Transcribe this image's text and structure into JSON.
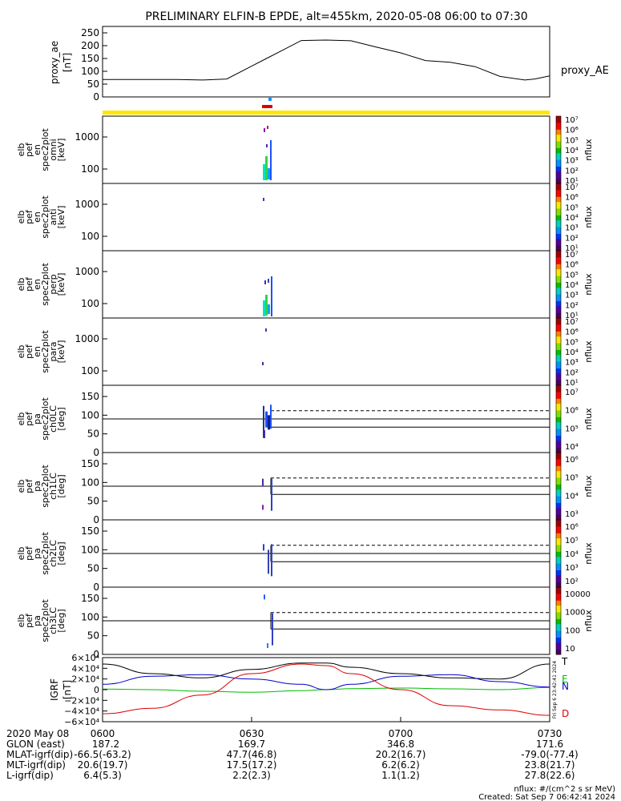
{
  "title": "PRELIMINARY ELFIN-B EPDE, alt=455km, 2020-05-08 06:00 to 07:30",
  "colors": {
    "state_bar": "#ffe600",
    "pass_marker": "#e00000",
    "pass_marker_top": "#1e90ff",
    "grf_total": "#000000",
    "grf_n": "#0000cc",
    "grf_e": "#00bb00",
    "grf_d": "#dd0000"
  },
  "panels": {
    "ae": {
      "ylabel": [
        "proxy_ae",
        "[nT]"
      ],
      "side_label": "proxy_AE",
      "ticks": [
        "0",
        "50",
        "100",
        "150",
        "200",
        "250"
      ]
    },
    "spec": [
      {
        "ylabel": [
          "elb",
          "pef",
          "en",
          "spec2plot",
          "omni",
          "[keV]"
        ],
        "ticks": [
          "100",
          "1000"
        ],
        "cb_ticks": [
          "10⁷",
          "10⁶",
          "10⁵",
          "10⁴",
          "10³",
          "10²",
          "10¹"
        ],
        "cb_label": "nflux"
      },
      {
        "ylabel": [
          "elb",
          "pef",
          "en",
          "spec2plot",
          "anti",
          "[keV]"
        ],
        "ticks": [
          "100",
          "1000"
        ],
        "cb_ticks": [
          "10⁷",
          "10⁶",
          "10⁵",
          "10⁴",
          "10³",
          "10²",
          "10¹"
        ],
        "cb_label": "nflux"
      },
      {
        "ylabel": [
          "elb",
          "pef",
          "en",
          "spec2plot",
          "perp",
          "[keV]"
        ],
        "ticks": [
          "100",
          "1000"
        ],
        "cb_ticks": [
          "10⁷",
          "10⁶",
          "10⁵",
          "10⁴",
          "10³",
          "10²",
          "10¹"
        ],
        "cb_label": "nflux"
      },
      {
        "ylabel": [
          "elb",
          "pef",
          "en",
          "spec2plot",
          "para",
          "[keV]"
        ],
        "ticks": [
          "100",
          "1000"
        ],
        "cb_ticks": [
          "10⁷",
          "10⁶",
          "10⁵",
          "10⁴",
          "10³",
          "10²",
          "10¹"
        ],
        "cb_label": "nflux"
      }
    ],
    "pa": [
      {
        "ylabel": [
          "elb",
          "pef",
          "pa",
          "spec2plot",
          "ch0LC",
          "[deg]"
        ],
        "ticks": [
          "0",
          "50",
          "100",
          "150"
        ],
        "cb_ticks": [
          "10⁷",
          "10⁶",
          "10⁵",
          "10⁴"
        ],
        "cb_label": "nflux"
      },
      {
        "ylabel": [
          "elb",
          "pef",
          "pa",
          "spec2plot",
          "ch1LC",
          "[deg]"
        ],
        "ticks": [
          "0",
          "50",
          "100",
          "150"
        ],
        "cb_ticks": [
          "10⁶",
          "10⁵",
          "10⁴",
          "10³"
        ],
        "cb_label": "nflux"
      },
      {
        "ylabel": [
          "elb",
          "pef",
          "pa",
          "spec2plot",
          "ch2LC",
          "[deg]"
        ],
        "ticks": [
          "0",
          "50",
          "100",
          "150"
        ],
        "cb_ticks": [
          "10⁶",
          "10⁵",
          "10⁴",
          "10³",
          "10²"
        ],
        "cb_label": "nflux"
      },
      {
        "ylabel": [
          "elb",
          "pef",
          "pa",
          "spec2plot",
          "ch3LC",
          "[deg]"
        ],
        "ticks": [
          "0",
          "50",
          "100",
          "150"
        ],
        "cb_ticks": [
          "10000",
          "1000",
          "100",
          "10"
        ],
        "cb_label": "nflux"
      }
    ],
    "igrf": {
      "ylabel": [
        "IGRF",
        "[nT]"
      ],
      "ticks": [
        "6×10⁴",
        "4×10⁴",
        "2×10⁴",
        "0",
        "−2×10⁴",
        "−4×10⁴",
        "−6×10⁴"
      ],
      "legend": [
        "T",
        "E",
        "N",
        "D"
      ],
      "stamp": "Fri Sep  6 23:42:41 2024"
    }
  },
  "footer": {
    "row_labels": [
      "2020 May 08",
      "GLON (east)",
      "MLAT-igrf(dip)",
      "MLT-igrf(dip)",
      "L-igrf(dip)"
    ],
    "columns": [
      {
        "time": "0600",
        "values": [
          "187.2",
          "-66.5(-63.2)",
          "20.6(19.7)",
          "6.4(5.3)"
        ]
      },
      {
        "time": "0630",
        "values": [
          "169.7",
          "47.7(46.8)",
          "17.5(17.2)",
          "2.2(2.3)"
        ]
      },
      {
        "time": "0700",
        "values": [
          "346.8",
          "20.2(16.7)",
          "6.2(6.2)",
          "1.1(1.2)"
        ]
      },
      {
        "time": "0730",
        "values": [
          "171.6",
          "-79.0(-77.4)",
          "23.8(21.7)",
          "27.8(22.6)"
        ]
      }
    ],
    "units_note": "nflux: #/(cm^2 s sr MeV)",
    "created": "Created: Sat Sep  7 06:42:41 2024"
  },
  "chart_data": [
    {
      "type": "line",
      "name": "proxy_AE",
      "x_minutes_after_0600": [
        0,
        5,
        10,
        15,
        20,
        25,
        30,
        33,
        36,
        40,
        45,
        50,
        55,
        60,
        65,
        70,
        75,
        80,
        85,
        87,
        90
      ],
      "values": [
        68,
        68,
        68,
        68,
        66,
        70,
        120,
        150,
        180,
        220,
        222,
        219,
        195,
        172,
        142,
        135,
        118,
        80,
        66,
        70,
        82
      ],
      "ylim": [
        0,
        250
      ]
    },
    {
      "type": "line",
      "name": "IGRF",
      "x_minutes_after_0600": [
        0,
        10,
        20,
        30,
        40,
        45,
        50,
        60,
        70,
        80,
        90
      ],
      "series": [
        {
          "name": "T",
          "values": [
            48000,
            30000,
            22000,
            38000,
            50000,
            50000,
            42000,
            30000,
            22000,
            20000,
            48000
          ]
        },
        {
          "name": "E",
          "values": [
            1000,
            0,
            -3000,
            -5000,
            -2000,
            0,
            2000,
            3000,
            1500,
            0,
            4000
          ]
        },
        {
          "name": "N",
          "values": [
            10000,
            25000,
            28000,
            20000,
            10000,
            0,
            10000,
            25000,
            28000,
            15000,
            5000
          ]
        },
        {
          "name": "D",
          "values": [
            -45000,
            -35000,
            -10000,
            30000,
            48000,
            45000,
            30000,
            0,
            -30000,
            -38000,
            -48000
          ]
        }
      ],
      "ylim": [
        -60000,
        60000
      ]
    }
  ]
}
